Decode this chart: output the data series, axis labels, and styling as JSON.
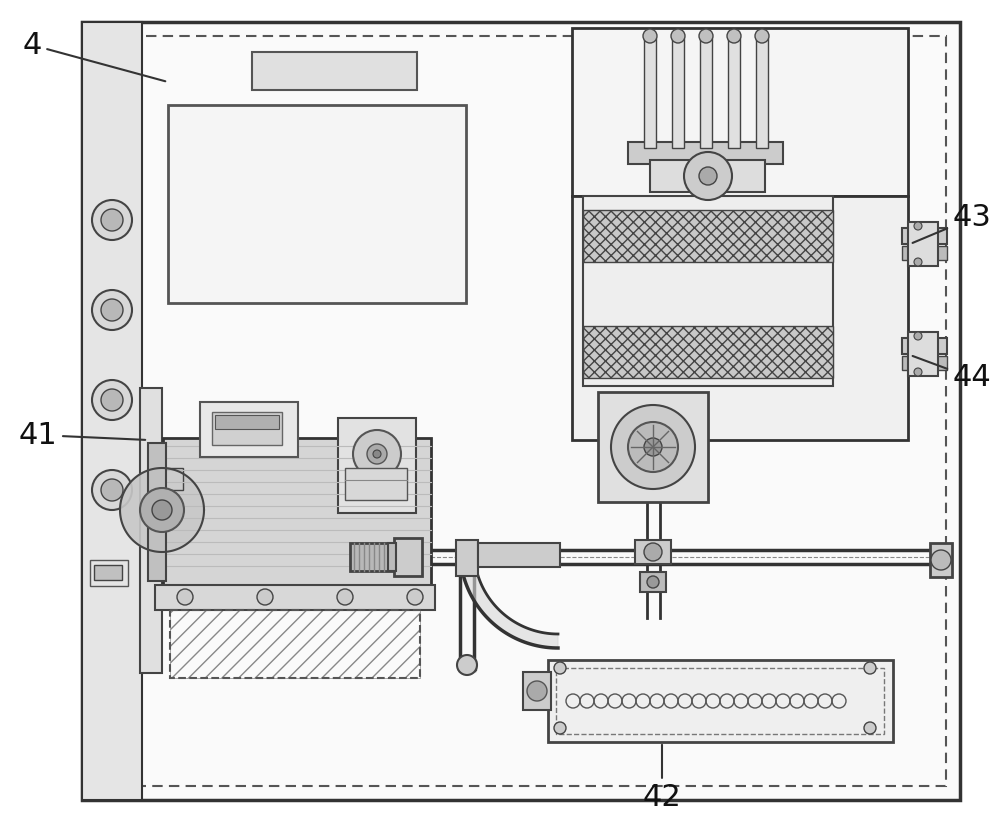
{
  "bg_color": "#ffffff",
  "line_color": "#333333",
  "figsize": [
    10.0,
    8.25
  ],
  "dpi": 100,
  "label_fontsize": 22
}
